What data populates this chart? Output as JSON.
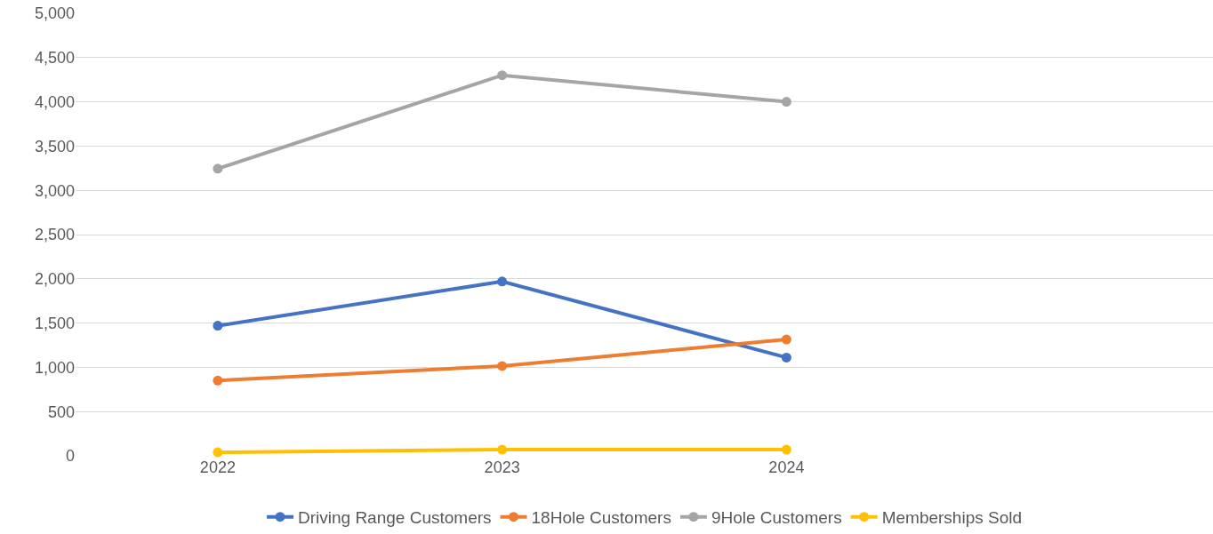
{
  "chart_data": {
    "type": "line",
    "categories": [
      "2022",
      "2023",
      "2024",
      null
    ],
    "series": [
      {
        "name": "Driving Range Customers",
        "color": "#4472c4",
        "values": [
          1470,
          1970,
          1110,
          null
        ]
      },
      {
        "name": "18Hole Customers",
        "color": "#ed7d31",
        "values": [
          850,
          1015,
          1315,
          null
        ]
      },
      {
        "name": "9Hole Customers",
        "color": "#a5a5a5",
        "values": [
          3245,
          4300,
          4000,
          null
        ]
      },
      {
        "name": "Memberships Sold",
        "color": "#ffc000",
        "values": [
          40,
          70,
          70,
          null
        ]
      }
    ],
    "ylim": [
      0,
      5000
    ],
    "yticks": [
      0,
      500,
      {
        "value": 1000,
        "label": "1,000"
      },
      {
        "value": 1500,
        "label": "1,500"
      },
      {
        "value": 2000,
        "label": "2,000"
      },
      {
        "value": 2500,
        "label": "2,500"
      },
      {
        "value": 3000,
        "label": "3,000"
      },
      {
        "value": 3500,
        "label": "3,500"
      },
      {
        "value": 4000,
        "label": "4,000"
      },
      {
        "value": 4500,
        "label": "4,500"
      },
      {
        "value": 5000,
        "label": "5,000"
      }
    ],
    "grid": "y",
    "legend": "bottom",
    "marker": "circle",
    "line_style": "solid"
  }
}
